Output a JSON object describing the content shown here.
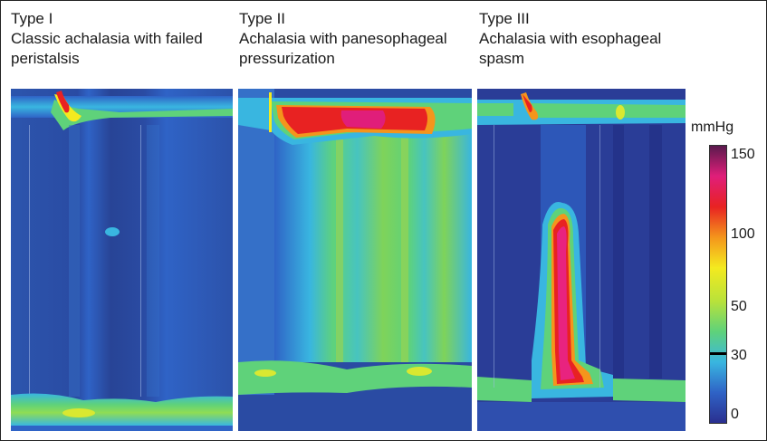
{
  "panels": [
    {
      "type": "Type I",
      "caption_line1": "Classic achalasia with failed",
      "caption_line2": "peristalsis"
    },
    {
      "type": "Type II",
      "caption_line1": "Achalasia with panesophageal",
      "caption_line2": "pressurization"
    },
    {
      "type": "Type III",
      "caption_line1": "Achalasia with esophageal",
      "caption_line2": "spasm"
    }
  ],
  "scale": {
    "unit": "mmHg",
    "ticks": [
      "150",
      "100",
      "50",
      "30",
      "0"
    ],
    "colors": [
      "#2a2f8f",
      "#2f63c6",
      "#39b6e0",
      "#5fd27a",
      "#b9e23a",
      "#f4ea1f",
      "#f4951c",
      "#e82222",
      "#e01e7a",
      "#5a1a4d"
    ]
  }
}
